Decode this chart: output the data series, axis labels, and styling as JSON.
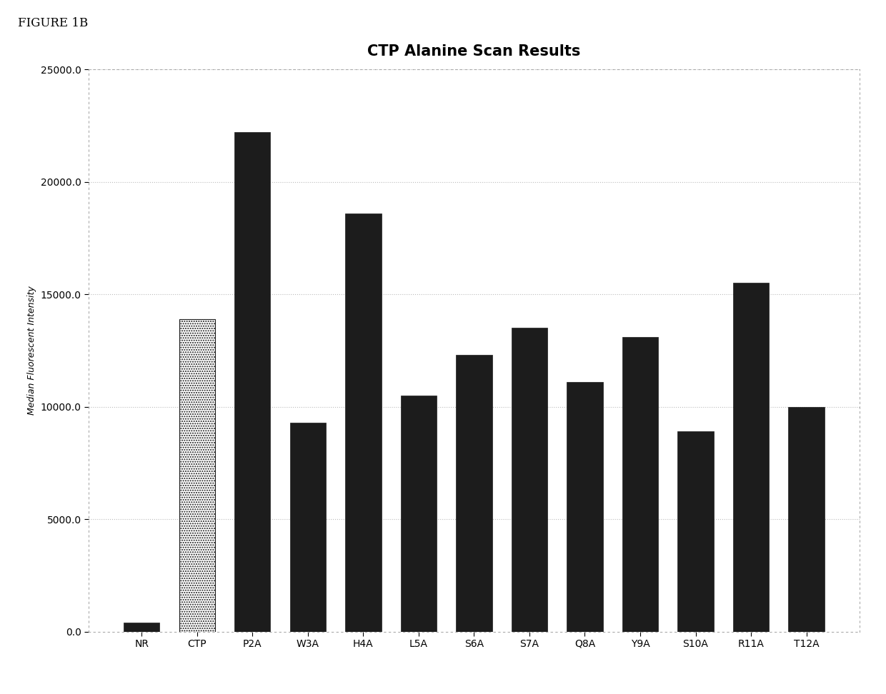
{
  "categories": [
    "NR",
    "CTP",
    "P2A",
    "W3A",
    "H4A",
    "L5A",
    "S6A",
    "S7A",
    "Q8A",
    "Y9A",
    "S10A",
    "R11A",
    "T12A"
  ],
  "values": [
    400,
    13900,
    22200,
    9300,
    18600,
    10500,
    12300,
    13500,
    11100,
    13100,
    8900,
    15500,
    10000
  ],
  "bar_color": "#1c1c1c",
  "ctp_bar_color": "#ffffff",
  "ctp_hatch": ".....",
  "title": "CTP Alanine Scan Results",
  "title_fontsize": 15,
  "ylabel": "Median Fluorescent Intensity",
  "ylabel_fontsize": 9,
  "ylim": [
    0,
    25000
  ],
  "yticks": [
    0.0,
    5000.0,
    10000.0,
    15000.0,
    20000.0,
    25000.0
  ],
  "ytick_labels": [
    "0.0",
    "5000.0",
    "10000.0",
    "15000.0",
    "20000.0",
    "25000.0"
  ],
  "background_color": "#ffffff",
  "figure_title": "FIGURE 1B",
  "figure_title_fontsize": 12,
  "border_color": "#aaaaaa",
  "grid_color": "#bbbbbb",
  "bar_width": 0.65,
  "tick_fontsize": 10
}
